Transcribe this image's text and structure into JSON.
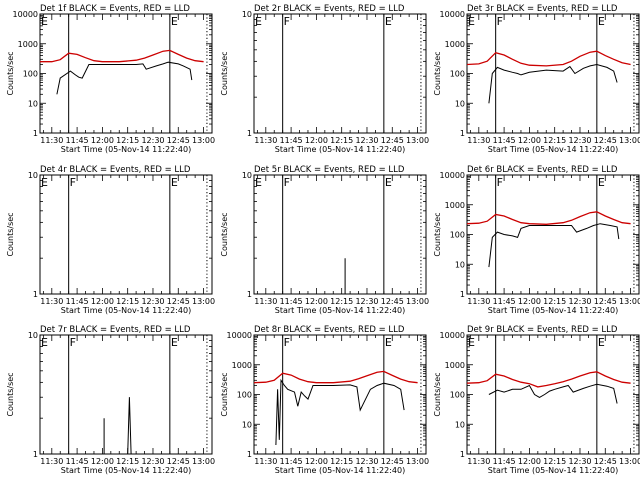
{
  "chart_data": [
    {
      "type": "line",
      "title": "Det 1f BLACK = Events, RED = LLD",
      "xlabel": "Start Time (05-Nov-14 11:22:40)",
      "ylabel": "Counts/sec",
      "yscale": "log",
      "ylim": [
        1,
        10000
      ],
      "ytick_labels": [
        "1",
        "10",
        "100",
        "1000",
        "10000"
      ],
      "xlim": [
        "11:23",
        "13:05"
      ],
      "xtick_labels": [
        "11:30",
        "11:45",
        "12:00",
        "12:15",
        "12:30",
        "12:45",
        "13:00"
      ],
      "flags": [
        {
          "label": "E",
          "time": "11:22:40"
        },
        {
          "label": "E",
          "time": "12:40"
        }
      ],
      "markers": {
        "solid": [
          "11:40",
          "12:40"
        ],
        "dotted": [
          "13:02"
        ]
      },
      "series": [
        {
          "name": "Events",
          "color": "#000000",
          "x": [
            "11:33",
            "11:35",
            "11:41",
            "11:44",
            "11:46",
            "11:48",
            "11:52",
            "11:55",
            "12:00",
            "12:10",
            "12:20",
            "12:24",
            "12:26",
            "12:32",
            "12:36",
            "12:39",
            "12:45",
            "12:48",
            "12:52",
            "12:53"
          ],
          "y": [
            20,
            70,
            120,
            90,
            75,
            70,
            200,
            200,
            200,
            200,
            200,
            210,
            140,
            180,
            210,
            240,
            210,
            180,
            140,
            60
          ]
        },
        {
          "name": "LLD",
          "color": "#cc0000",
          "x": [
            "11:23",
            "11:30",
            "11:35",
            "11:40",
            "11:45",
            "11:50",
            "11:55",
            "12:00",
            "12:10",
            "12:20",
            "12:25",
            "12:30",
            "12:36",
            "12:40",
            "12:45",
            "12:50",
            "12:55",
            "13:00"
          ],
          "y": [
            250,
            250,
            290,
            480,
            440,
            340,
            270,
            250,
            250,
            280,
            330,
            420,
            560,
            600,
            440,
            330,
            270,
            250
          ]
        }
      ]
    },
    {
      "type": "line",
      "title": "Det 2r BLACK = Events, RED = LLD",
      "xlabel": "Start Time (05-Nov-14 11:22:40)",
      "ylabel": "Counts/sec",
      "yscale": "log",
      "ylim": [
        1,
        10
      ],
      "ytick_labels": [
        "1",
        "10"
      ],
      "xlim": [
        "11:23",
        "13:05"
      ],
      "xtick_labels": [
        "11:30",
        "11:45",
        "12:00",
        "12:15",
        "12:30",
        "12:45",
        "13:00"
      ],
      "flags": [
        {
          "label": "E",
          "time": "11:22:40"
        },
        {
          "label": "F",
          "time": "11:40"
        },
        {
          "label": "E",
          "time": "12:40"
        }
      ],
      "markers": {
        "solid": [
          "11:40",
          "12:40"
        ],
        "dotted": [
          "13:02"
        ]
      },
      "series": []
    },
    {
      "type": "line",
      "title": "Det 3r BLACK = Events, RED = LLD",
      "xlabel": "Start Time (05-Nov-14 11:22:40)",
      "ylabel": "Counts/sec",
      "yscale": "log",
      "ylim": [
        1,
        10000
      ],
      "ytick_labels": [
        "1",
        "10",
        "100",
        "1000",
        "10000"
      ],
      "xlim": [
        "11:23",
        "13:05"
      ],
      "xtick_labels": [
        "11:30",
        "11:45",
        "12:00",
        "12:15",
        "12:30",
        "12:45",
        "13:00"
      ],
      "flags": [
        {
          "label": "E",
          "time": "11:22:40"
        },
        {
          "label": "F",
          "time": "11:40"
        },
        {
          "label": "E",
          "time": "12:40"
        }
      ],
      "markers": {
        "solid": [
          "11:40",
          "12:40"
        ],
        "dotted": [
          "13:02"
        ]
      },
      "series": [
        {
          "name": "Events",
          "color": "#000000",
          "x": [
            "11:36",
            "11:38",
            "11:41",
            "11:45",
            "11:50",
            "11:53",
            "11:55",
            "12:00",
            "12:10",
            "12:20",
            "12:24",
            "12:27",
            "12:32",
            "12:36",
            "12:40",
            "12:46",
            "12:50",
            "12:52"
          ],
          "y": [
            10,
            100,
            160,
            130,
            110,
            100,
            90,
            110,
            130,
            120,
            170,
            100,
            150,
            180,
            200,
            160,
            120,
            50
          ]
        },
        {
          "name": "LLD",
          "color": "#cc0000",
          "x": [
            "11:23",
            "11:30",
            "11:35",
            "11:40",
            "11:45",
            "11:50",
            "11:55",
            "12:00",
            "12:10",
            "12:20",
            "12:25",
            "12:30",
            "12:36",
            "12:40",
            "12:45",
            "12:50",
            "12:55",
            "13:00"
          ],
          "y": [
            200,
            210,
            260,
            500,
            420,
            300,
            220,
            190,
            180,
            200,
            260,
            380,
            520,
            560,
            400,
            300,
            230,
            200
          ]
        }
      ]
    },
    {
      "type": "line",
      "title": "Det 4r BLACK = Events, RED = LLD",
      "xlabel": "Start Time (05-Nov-14 11:22:40)",
      "ylabel": "Counts/sec",
      "yscale": "log",
      "ylim": [
        1,
        10
      ],
      "ytick_labels": [
        "1",
        "10"
      ],
      "xlim": [
        "11:23",
        "13:05"
      ],
      "xtick_labels": [
        "11:30",
        "11:45",
        "12:00",
        "12:15",
        "12:30",
        "12:45",
        "13:00"
      ],
      "flags": [
        {
          "label": "E",
          "time": "11:22:40"
        },
        {
          "label": "F",
          "time": "11:40"
        },
        {
          "label": "E",
          "time": "12:40"
        }
      ],
      "markers": {
        "solid": [
          "11:40",
          "12:40"
        ],
        "dotted": [
          "13:02"
        ]
      },
      "series": []
    },
    {
      "type": "line",
      "title": "Det 5r BLACK = Events, RED = LLD",
      "xlabel": "Start Time (05-Nov-14 11:22:40)",
      "ylabel": "Counts/sec",
      "yscale": "log",
      "ylim": [
        1,
        10
      ],
      "ytick_labels": [
        "1",
        "10"
      ],
      "xlim": [
        "11:23",
        "13:05"
      ],
      "xtick_labels": [
        "11:30",
        "11:45",
        "12:00",
        "12:15",
        "12:30",
        "12:45",
        "13:00"
      ],
      "flags": [
        {
          "label": "E",
          "time": "11:22:40"
        },
        {
          "label": "F",
          "time": "11:40"
        },
        {
          "label": "E",
          "time": "12:40"
        }
      ],
      "markers": {
        "solid": [
          "11:40",
          "12:40"
        ],
        "dotted": [
          "13:02"
        ]
      },
      "series": [
        {
          "name": "Events",
          "color": "#000000",
          "x": [
            "12:17",
            "12:17",
            "12:17"
          ],
          "y": [
            1,
            2,
            1
          ]
        }
      ]
    },
    {
      "type": "line",
      "title": "Det 6r BLACK = Events, RED = LLD",
      "xlabel": "Start Time (05-Nov-14 11:22:40)",
      "ylabel": "Counts/sec",
      "yscale": "log",
      "ylim": [
        1,
        10000
      ],
      "ytick_labels": [
        "1",
        "10",
        "100",
        "1000",
        "10000"
      ],
      "xlim": [
        "11:23",
        "13:05"
      ],
      "xtick_labels": [
        "11:30",
        "11:45",
        "12:00",
        "12:15",
        "12:30",
        "12:45",
        "13:00"
      ],
      "flags": [
        {
          "label": "F",
          "time": "11:40"
        },
        {
          "label": "E",
          "time": "12:40"
        }
      ],
      "markers": {
        "solid": [
          "11:40",
          "12:40"
        ],
        "dotted": [
          "13:02"
        ]
      },
      "series": [
        {
          "name": "Events",
          "color": "#000000",
          "x": [
            "11:36",
            "11:38",
            "11:41",
            "11:45",
            "11:50",
            "11:53",
            "11:55",
            "12:00",
            "12:10",
            "12:20",
            "12:25",
            "12:28",
            "12:34",
            "12:38",
            "12:42",
            "12:48",
            "12:52",
            "12:53"
          ],
          "y": [
            8,
            80,
            120,
            100,
            90,
            80,
            160,
            200,
            200,
            200,
            200,
            120,
            160,
            200,
            230,
            200,
            180,
            70
          ]
        },
        {
          "name": "LLD",
          "color": "#cc0000",
          "x": [
            "11:23",
            "11:30",
            "11:35",
            "11:40",
            "11:45",
            "11:50",
            "11:55",
            "12:00",
            "12:10",
            "12:20",
            "12:25",
            "12:30",
            "12:36",
            "12:40",
            "12:45",
            "12:50",
            "12:55",
            "13:00"
          ],
          "y": [
            230,
            240,
            280,
            470,
            420,
            320,
            250,
            230,
            220,
            250,
            300,
            400,
            540,
            580,
            420,
            320,
            250,
            230
          ]
        }
      ]
    },
    {
      "type": "line",
      "title": "Det 7r BLACK = Events, RED = LLD",
      "xlabel": "Start Time (05-Nov-14 11:22:40)",
      "ylabel": "Counts/sec",
      "yscale": "log",
      "ylim": [
        1,
        10
      ],
      "ytick_labels": [
        "1",
        "10"
      ],
      "xlim": [
        "11:23",
        "13:05"
      ],
      "xtick_labels": [
        "11:30",
        "11:45",
        "12:00",
        "12:15",
        "12:30",
        "12:45",
        "13:00"
      ],
      "flags": [
        {
          "label": "E",
          "time": "11:22:40"
        },
        {
          "label": "F",
          "time": "11:40"
        },
        {
          "label": "E",
          "time": "12:40"
        }
      ],
      "markers": {
        "solid": [
          "11:40",
          "12:40"
        ],
        "dotted": [
          "13:02"
        ]
      },
      "series": [
        {
          "name": "Events",
          "color": "#000000",
          "x": [
            "12:01",
            "12:01",
            "12:01",
            "12:15",
            "12:16",
            "12:17",
            "12:18"
          ],
          "y": [
            1,
            2,
            1,
            1,
            3,
            1,
            1
          ]
        }
      ]
    },
    {
      "type": "line",
      "title": "Det 8r BLACK = Events, RED = LLD",
      "xlabel": "Start Time (05-Nov-14 11:22:40)",
      "ylabel": "Counts/sec",
      "yscale": "log",
      "ylim": [
        1,
        10000
      ],
      "ytick_labels": [
        "1",
        "10",
        "100",
        "1000",
        "10000"
      ],
      "xlim": [
        "11:23",
        "13:05"
      ],
      "xtick_labels": [
        "11:30",
        "11:45",
        "12:00",
        "12:15",
        "12:30",
        "12:45",
        "13:00"
      ],
      "flags": [
        {
          "label": "F",
          "time": "11:40"
        },
        {
          "label": "E",
          "time": "12:40"
        }
      ],
      "markers": {
        "solid": [
          "11:40",
          "12:40"
        ],
        "dotted": [
          "13:02"
        ]
      },
      "series": [
        {
          "name": "Events",
          "color": "#000000",
          "x": [
            "11:36",
            "11:37",
            "11:38",
            "11:39",
            "11:41",
            "11:43",
            "11:47",
            "11:49",
            "11:51",
            "11:53",
            "11:55",
            "11:58",
            "12:02",
            "12:10",
            "12:20",
            "12:24",
            "12:26",
            "12:32",
            "12:36",
            "12:40",
            "12:46",
            "12:50",
            "12:52"
          ],
          "y": [
            2,
            150,
            3,
            300,
            200,
            150,
            120,
            40,
            120,
            90,
            70,
            200,
            200,
            200,
            210,
            180,
            30,
            150,
            200,
            240,
            200,
            150,
            30
          ]
        },
        {
          "name": "LLD",
          "color": "#cc0000",
          "x": [
            "11:23",
            "11:30",
            "11:35",
            "11:40",
            "11:45",
            "11:50",
            "11:55",
            "12:00",
            "12:10",
            "12:20",
            "12:25",
            "12:30",
            "12:36",
            "12:40",
            "12:45",
            "12:50",
            "12:55",
            "13:00"
          ],
          "y": [
            250,
            260,
            300,
            520,
            450,
            330,
            270,
            250,
            250,
            280,
            340,
            430,
            560,
            600,
            440,
            330,
            270,
            250
          ]
        }
      ]
    },
    {
      "type": "line",
      "title": "Det 9r BLACK = Events, RED = LLD",
      "xlabel": "Start Time (05-Nov-14 11:22:40)",
      "ylabel": "Counts/sec",
      "yscale": "log",
      "ylim": [
        1,
        10000
      ],
      "ytick_labels": [
        "1",
        "10",
        "100",
        "1000",
        "10000"
      ],
      "xlim": [
        "11:23",
        "13:05"
      ],
      "xtick_labels": [
        "11:30",
        "11:45",
        "12:00",
        "12:15",
        "12:30",
        "12:45",
        "13:00"
      ],
      "flags": [
        {
          "label": "E",
          "time": "11:22:40"
        },
        {
          "label": "E",
          "time": "12:40"
        }
      ],
      "markers": {
        "solid": [
          "11:40",
          "12:40"
        ],
        "dotted": [
          "13:02"
        ]
      },
      "series": [
        {
          "name": "Events",
          "color": "#000000",
          "x": [
            "11:36",
            "11:41",
            "11:45",
            "11:50",
            "11:55",
            "12:00",
            "12:03",
            "12:06",
            "12:09",
            "12:12",
            "12:15",
            "12:20",
            "12:23",
            "12:26",
            "12:32",
            "12:36",
            "12:40",
            "12:46",
            "12:50",
            "12:52"
          ],
          "y": [
            100,
            140,
            120,
            150,
            150,
            200,
            100,
            80,
            100,
            130,
            150,
            180,
            200,
            120,
            160,
            190,
            220,
            190,
            160,
            50
          ]
        },
        {
          "name": "LLD",
          "color": "#cc0000",
          "x": [
            "11:23",
            "11:30",
            "11:35",
            "11:40",
            "11:45",
            "11:50",
            "11:55",
            "12:00",
            "12:05",
            "12:10",
            "12:15",
            "12:20",
            "12:25",
            "12:30",
            "12:36",
            "12:40",
            "12:45",
            "12:50",
            "12:55",
            "13:00"
          ],
          "y": [
            240,
            250,
            290,
            480,
            420,
            320,
            260,
            230,
            180,
            200,
            230,
            270,
            330,
            420,
            540,
            580,
            420,
            320,
            260,
            240
          ]
        }
      ]
    }
  ]
}
